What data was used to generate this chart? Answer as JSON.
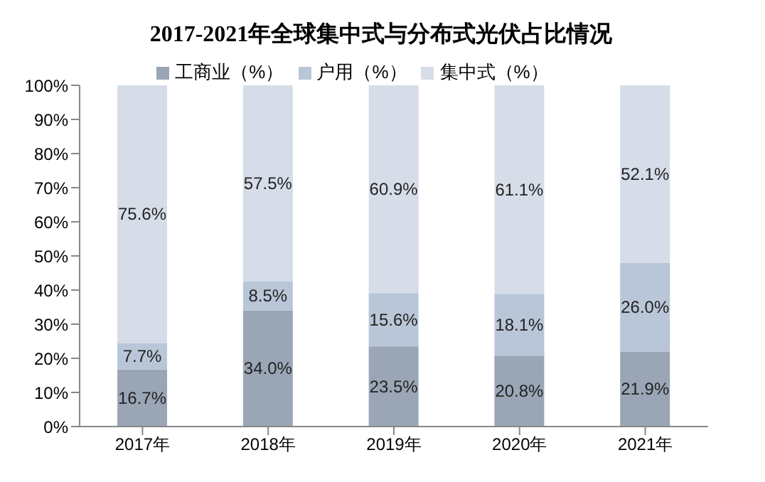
{
  "chart_data": {
    "type": "bar",
    "title": "2017-2021年全球集中式与分布式光伏占比情况",
    "categories": [
      "2017年",
      "2018年",
      "2019年",
      "2020年",
      "2021年"
    ],
    "stacked": true,
    "legend": "top",
    "grid": false,
    "series": [
      {
        "name": "工商业（%）",
        "color": "#9aa6b6",
        "values": [
          16.7,
          34.0,
          23.5,
          20.8,
          21.9
        ],
        "value_labels": [
          "16.7%",
          "34.0%",
          "23.5%",
          "20.8%",
          "21.9%"
        ]
      },
      {
        "name": "户用（%）",
        "color": "#b9c6d8",
        "values": [
          7.7,
          8.5,
          15.6,
          18.1,
          26.0
        ],
        "value_labels": [
          "7.7%",
          "8.5%",
          "15.6%",
          "18.1%",
          "26.0%"
        ]
      },
      {
        "name": "集中式（%）",
        "color": "#d6dde9",
        "values": [
          75.6,
          57.5,
          60.9,
          61.1,
          52.1
        ],
        "value_labels": [
          "75.6%",
          "57.5%",
          "60.9%",
          "61.1%",
          "52.1%"
        ]
      }
    ],
    "ylim": [
      0,
      100
    ],
    "yticks": [
      {
        "value": 0,
        "label": "0%"
      },
      {
        "value": 10,
        "label": "10%"
      },
      {
        "value": 20,
        "label": "20%"
      },
      {
        "value": 30,
        "label": "30%"
      },
      {
        "value": 40,
        "label": "40%"
      },
      {
        "value": 50,
        "label": "50%"
      },
      {
        "value": 60,
        "label": "60%"
      },
      {
        "value": 70,
        "label": "70%"
      },
      {
        "value": 80,
        "label": "80%"
      },
      {
        "value": 90,
        "label": "90%"
      },
      {
        "value": 100,
        "label": "100%"
      }
    ]
  }
}
